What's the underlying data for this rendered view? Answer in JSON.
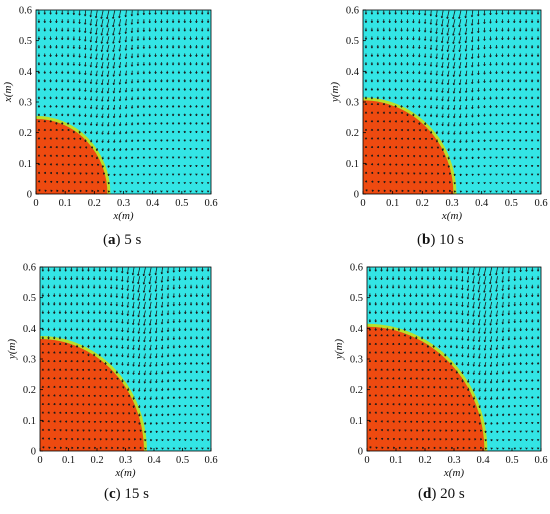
{
  "figure": {
    "panels": [
      {
        "letter": "a",
        "caption_time": "5 s",
        "radius_m": 0.25,
        "xlabel": "x(m)",
        "ylabel": "x(m)"
      },
      {
        "letter": "b",
        "caption_time": "10 s",
        "radius_m": 0.31,
        "xlabel": "x(m)",
        "ylabel": "y(m)"
      },
      {
        "letter": "c",
        "caption_time": "15 s",
        "radius_m": 0.37,
        "xlabel": "x(m)",
        "ylabel": "y(m)"
      },
      {
        "letter": "d",
        "caption_time": "20 s",
        "radius_m": 0.41,
        "xlabel": "x(m)",
        "ylabel": "y(m)"
      }
    ],
    "axis_ticks": [
      "0",
      "0.1",
      "0.2",
      "0.3",
      "0.4",
      "0.5",
      "0.6"
    ],
    "colors": {
      "liquid_region": "#33e5e5",
      "solid_region": "#ee4a10",
      "interface": "#b8e02a",
      "arrow": "#1a1a1a",
      "axis": "#000000"
    }
  },
  "chart_data": [
    {
      "type": "heatmap",
      "panel": "a",
      "title": "",
      "xlabel": "x(m)",
      "ylabel": "x(m)",
      "xlim": [
        0,
        0.6
      ],
      "ylim": [
        0,
        0.6
      ],
      "xticks": [
        0,
        0.1,
        0.2,
        0.3,
        0.4,
        0.5,
        0.6
      ],
      "yticks": [
        0,
        0.1,
        0.2,
        0.3,
        0.4,
        0.5,
        0.6
      ],
      "front_radius": 0.25,
      "vector_field": true
    },
    {
      "type": "heatmap",
      "panel": "b",
      "title": "",
      "xlabel": "x(m)",
      "ylabel": "y(m)",
      "xlim": [
        0,
        0.6
      ],
      "ylim": [
        0,
        0.6
      ],
      "xticks": [
        0,
        0.1,
        0.2,
        0.3,
        0.4,
        0.5,
        0.6
      ],
      "yticks": [
        0,
        0.1,
        0.2,
        0.3,
        0.4,
        0.5,
        0.6
      ],
      "front_radius": 0.31,
      "vector_field": true
    },
    {
      "type": "heatmap",
      "panel": "c",
      "title": "",
      "xlabel": "x(m)",
      "ylabel": "y(m)",
      "xlim": [
        0,
        0.6
      ],
      "ylim": [
        0,
        0.6
      ],
      "xticks": [
        0,
        0.1,
        0.2,
        0.3,
        0.4,
        0.5,
        0.6
      ],
      "yticks": [
        0,
        0.1,
        0.2,
        0.3,
        0.4,
        0.5,
        0.6
      ],
      "front_radius": 0.37,
      "vector_field": true
    },
    {
      "type": "heatmap",
      "panel": "d",
      "title": "",
      "xlabel": "x(m)",
      "ylabel": "y(m)",
      "xlim": [
        0,
        0.6
      ],
      "ylim": [
        0,
        0.6
      ],
      "xticks": [
        0,
        0.1,
        0.2,
        0.3,
        0.4,
        0.5,
        0.6
      ],
      "yticks": [
        0,
        0.1,
        0.2,
        0.3,
        0.4,
        0.5,
        0.6
      ],
      "front_radius": 0.41,
      "vector_field": true
    }
  ]
}
